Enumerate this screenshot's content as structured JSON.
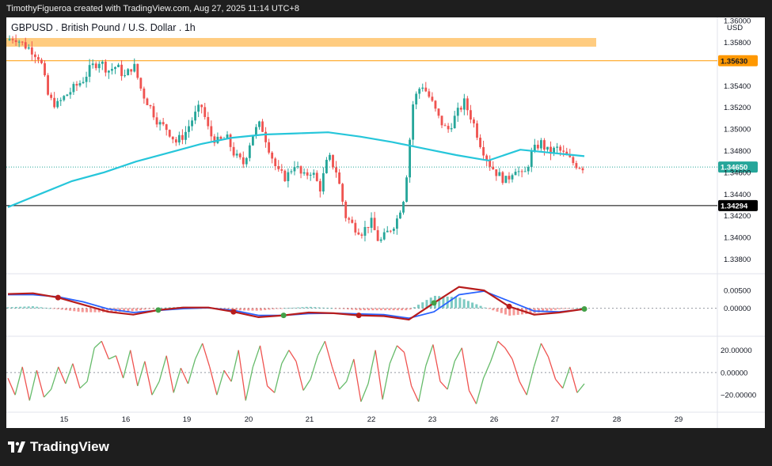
{
  "header": {
    "caption": "TimothyFigueroa created with TradingView.com, Aug 27, 2025 11:14 UTC+8"
  },
  "brand": {
    "name": "TradingView"
  },
  "chart_data": {
    "type": "candlestick",
    "title": "GBPUSD . British Pound / U.S. Dollar . 1h",
    "currency": "USD",
    "price_axis": {
      "range": [
        1.3368,
        1.3603
      ],
      "ticks": [
        "1.36000",
        "1.35800",
        "1.35400",
        "1.35200",
        "1.35000",
        "1.34800",
        "1.34600",
        "1.34400",
        "1.34200",
        "1.34000",
        "1.33800"
      ]
    },
    "x_axis": {
      "labels": [
        "15",
        "16",
        "19",
        "20",
        "21",
        "22",
        "23",
        "26",
        "27",
        "28",
        "29"
      ]
    },
    "current_price": {
      "label": "1.34650",
      "value": 1.3465,
      "color": "#26a69a"
    },
    "horizontal_levels": [
      {
        "label": "1.35630",
        "value": 1.3563,
        "color": "#ff9800"
      },
      {
        "label": "1.34294",
        "value": 1.34294,
        "color": "#000000"
      }
    ],
    "resistance_zone": {
      "from": 1.3576,
      "to": 1.3584,
      "color": "#ffcc80"
    },
    "candles_key_prices": [
      1.3582,
      1.3585,
      1.3578,
      1.3573,
      1.3565,
      1.3528,
      1.3522,
      1.3531,
      1.3538,
      1.3545,
      1.3557,
      1.3563,
      1.3554,
      1.3558,
      1.3548,
      1.356,
      1.3534,
      1.352,
      1.3505,
      1.35,
      1.3488,
      1.3495,
      1.351,
      1.3522,
      1.3495,
      1.3488,
      1.3492,
      1.3475,
      1.3468,
      1.3495,
      1.3505,
      1.3482,
      1.346,
      1.3455,
      1.3468,
      1.3455,
      1.3462,
      1.3445,
      1.3475,
      1.346,
      1.342,
      1.341,
      1.3405,
      1.3415,
      1.3395,
      1.3405,
      1.3415,
      1.344,
      1.3525,
      1.3542,
      1.3528,
      1.351,
      1.3498,
      1.3512,
      1.3525,
      1.3508,
      1.3485,
      1.3468,
      1.3458,
      1.3452,
      1.3465,
      1.3455,
      1.3478,
      1.3488,
      1.3478,
      1.3482,
      1.3475,
      1.3468,
      1.3465
    ],
    "moving_average": {
      "color": "#26c6da",
      "values": [
        1.3428,
        1.344,
        1.3452,
        1.346,
        1.347,
        1.3478,
        1.3486,
        1.3492,
        1.3495,
        1.3496,
        1.3497,
        1.3493,
        1.3488,
        1.3482,
        1.3476,
        1.3471,
        1.3481,
        1.3478,
        1.3475
      ]
    },
    "oscillator1": {
      "range": [
        -0.0072,
        0.0088
      ],
      "ticks": [
        "0.00500",
        "0.00000"
      ],
      "fast": [
        0.004,
        0.0042,
        0.003,
        0.001,
        -0.001,
        -0.0018,
        -0.0005,
        0.0002,
        0.0002,
        -0.001,
        -0.0025,
        -0.002,
        -0.0012,
        -0.0014,
        -0.002,
        -0.0022,
        -0.0032,
        0.0015,
        0.006,
        0.005,
        0.0005,
        -0.0018,
        -0.0012,
        -0.0002
      ],
      "slow": [
        0.0038,
        0.0038,
        0.0032,
        0.0018,
        -0.0002,
        -0.0012,
        -0.0006,
        -0.0001,
        0.0001,
        -0.0006,
        -0.002,
        -0.002,
        -0.0015,
        -0.0014,
        -0.0016,
        -0.0018,
        -0.0028,
        -0.001,
        0.0038,
        0.0048,
        0.002,
        -0.0008,
        -0.001,
        -0.0003
      ]
    },
    "oscillator2": {
      "range": [
        -34,
        31
      ],
      "ticks": [
        "20.00000",
        "0.00000",
        "−20.00000"
      ],
      "values": [
        -5,
        -20,
        5,
        -25,
        2,
        -22,
        -15,
        5,
        -10,
        8,
        -14,
        -8,
        22,
        28,
        12,
        15,
        -5,
        20,
        -12,
        10,
        -20,
        -8,
        15,
        -18,
        4,
        -10,
        12,
        26,
        5,
        -20,
        2,
        -8,
        20,
        -25,
        5,
        24,
        -12,
        -18,
        8,
        20,
        10,
        -16,
        -6,
        15,
        28,
        5,
        -15,
        -8,
        12,
        -26,
        -10,
        20,
        -24,
        8,
        24,
        18,
        -12,
        -26,
        6,
        25,
        -8,
        -15,
        10,
        22,
        -16,
        -28,
        -5,
        10,
        28,
        22,
        12,
        -8,
        -20,
        5,
        26,
        14,
        -6,
        -14,
        5,
        -18,
        -10
      ]
    }
  }
}
